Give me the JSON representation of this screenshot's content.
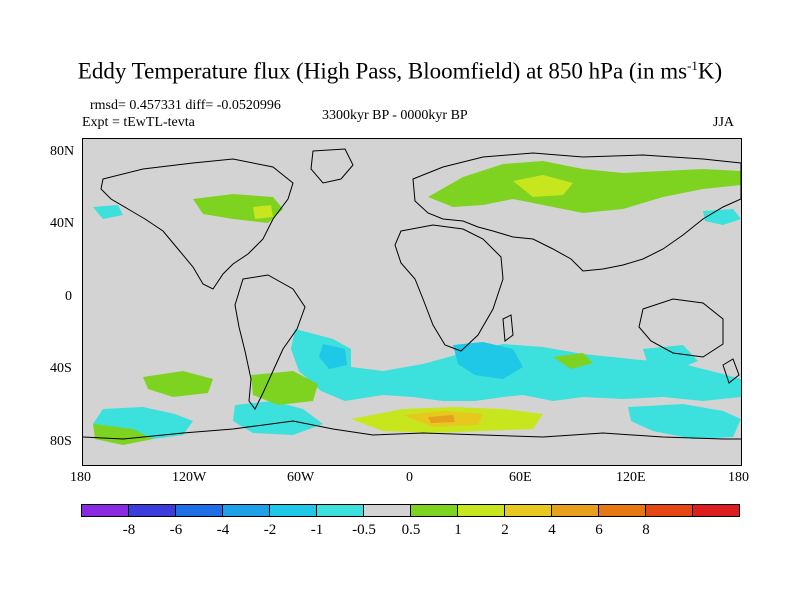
{
  "title": {
    "main_before": "Eddy Temperature flux (High Pass, Bloomfield) at 850 hPa (in ms",
    "superscript": "-1",
    "main_after": "K)"
  },
  "stats_line": "rmsd= 0.457331 diff= -0.0520996",
  "expt_line": "Expt = tEwTL-tevta",
  "period": "3300kyr BP - 0000kyr BP",
  "season": "JJA",
  "map": {
    "projection": "cylindrical-equidistant",
    "lon_range": [
      -180,
      180
    ],
    "lat_range": [
      -90,
      90
    ],
    "background_color": "#d3d3d3",
    "y_ticks": [
      "80N",
      "40N",
      "0",
      "40S",
      "80S"
    ],
    "x_ticks": [
      "180",
      "120W",
      "60W",
      "0",
      "60E",
      "120E",
      "180"
    ]
  },
  "colorbar": {
    "colors": [
      "#8a2be2",
      "#3c3cdc",
      "#1e6ee6",
      "#1ea0e6",
      "#1ec8e6",
      "#3ce0dc",
      "#d3d3d3",
      "#7ed321",
      "#c8e61e",
      "#e6c81e",
      "#e6a01e",
      "#e67814",
      "#e64614",
      "#dc1e1e"
    ],
    "labels": [
      "-8",
      "-6",
      "-4",
      "-2",
      "-1",
      "-0.5",
      "0.5",
      "1",
      "2",
      "4",
      "6",
      "8"
    ]
  },
  "field_colors": {
    "neg_0_5": "#3ce0dc",
    "neg_1": "#1ec8e6",
    "pos_0_5": "#7ed321",
    "pos_1": "#c8e61e",
    "pos_2": "#e6c81e",
    "pos_4": "#e6a01e",
    "coast": "#000000"
  }
}
